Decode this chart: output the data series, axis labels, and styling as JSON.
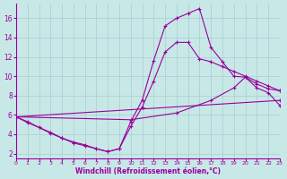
{
  "xlabel": "Windchill (Refroidissement éolien,°C)",
  "xlim": [
    0,
    23
  ],
  "ylim": [
    1.5,
    17.5
  ],
  "xticks": [
    0,
    1,
    2,
    3,
    4,
    5,
    6,
    7,
    8,
    9,
    10,
    11,
    12,
    13,
    14,
    15,
    16,
    17,
    18,
    19,
    20,
    21,
    22,
    23
  ],
  "yticks": [
    2,
    4,
    6,
    8,
    10,
    12,
    14,
    16
  ],
  "bg_color": "#c8e8e8",
  "line_color": "#990099",
  "grid_color": "#a8cccc",
  "series": [
    {
      "x": [
        0,
        1,
        2,
        3,
        4,
        5,
        6,
        7,
        8,
        9,
        10,
        11,
        12,
        13,
        14,
        15,
        16,
        17,
        18,
        19,
        20,
        21,
        22,
        23
      ],
      "y": [
        5.8,
        5.3,
        4.7,
        4.2,
        3.6,
        3.2,
        2.9,
        2.5,
        2.2,
        2.5,
        5.3,
        7.5,
        11.6,
        15.2,
        16.0,
        16.5,
        17.0,
        13.0,
        11.5,
        10.0,
        9.9,
        8.8,
        8.3,
        7.0
      ]
    },
    {
      "x": [
        0,
        1,
        2,
        3,
        4,
        5,
        6,
        7,
        8,
        9,
        10,
        11,
        12,
        13,
        14,
        15,
        16,
        17,
        18,
        19,
        20,
        21,
        22,
        23
      ],
      "y": [
        5.8,
        5.2,
        4.7,
        4.1,
        3.6,
        3.1,
        2.8,
        2.5,
        2.2,
        2.5,
        4.8,
        6.8,
        9.5,
        12.5,
        13.5,
        13.5,
        11.8,
        11.5,
        11.0,
        10.5,
        10.0,
        9.5,
        9.0,
        8.5
      ]
    },
    {
      "x": [
        0,
        10,
        14,
        17,
        19,
        20,
        21,
        22,
        23
      ],
      "y": [
        5.8,
        5.5,
        6.2,
        7.5,
        8.8,
        9.9,
        9.2,
        8.7,
        8.5
      ]
    },
    {
      "x": [
        0,
        23
      ],
      "y": [
        5.8,
        7.5
      ]
    }
  ]
}
